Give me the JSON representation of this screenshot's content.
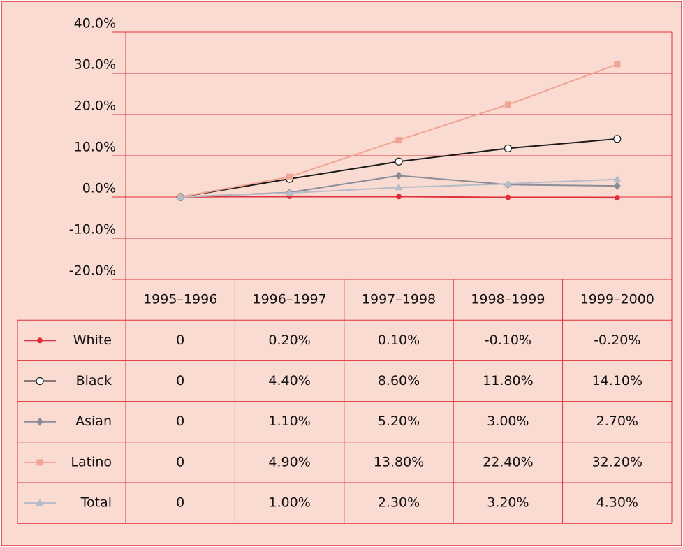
{
  "chart_data": {
    "type": "line",
    "categories": [
      "1995–1996",
      "1996–1997",
      "1997–1998",
      "1998–1999",
      "1999–2000"
    ],
    "series": [
      {
        "name": "White",
        "color": "#e0303c",
        "marker": "circle",
        "values": [
          0,
          0.2,
          0.1,
          -0.1,
          -0.2
        ],
        "value_labels": [
          "0",
          "0.20%",
          "0.10%",
          "-0.10%",
          "-0.20%"
        ]
      },
      {
        "name": "Black",
        "color": "#1a1a1a",
        "marker": "open-circle",
        "values": [
          0,
          4.4,
          8.6,
          11.8,
          14.1
        ],
        "value_labels": [
          "0",
          "4.40%",
          "8.60%",
          "11.80%",
          "14.10%"
        ]
      },
      {
        "name": "Asian",
        "color": "#8a8d95",
        "marker": "diamond",
        "values": [
          0,
          1.1,
          5.2,
          3.0,
          2.7
        ],
        "value_labels": [
          "0",
          "1.10%",
          "5.20%",
          "3.00%",
          "2.70%"
        ]
      },
      {
        "name": "Latino",
        "color": "#f0a494",
        "marker": "square",
        "values": [
          0,
          4.9,
          13.8,
          22.4,
          32.2
        ],
        "value_labels": [
          "0",
          "4.90%",
          "13.80%",
          "22.40%",
          "32.20%"
        ]
      },
      {
        "name": "Total",
        "color": "#b4bcc8",
        "marker": "triangle",
        "values": [
          0,
          1.0,
          2.3,
          3.2,
          4.3
        ],
        "value_labels": [
          "0",
          "1.00%",
          "2.30%",
          "3.20%",
          "4.30%"
        ]
      }
    ],
    "ylim": [
      -20,
      40
    ],
    "yticks": [
      {
        "value": -20,
        "label": "-20.0%"
      },
      {
        "value": -10,
        "label": "-10.0%"
      },
      {
        "value": 0,
        "label": "0.0%"
      },
      {
        "value": 10,
        "label": "10.0%"
      },
      {
        "value": 20,
        "label": "20.0%"
      },
      {
        "value": 30,
        "label": "30.0%"
      },
      {
        "value": 40,
        "label": "40.0%"
      }
    ],
    "grid": true
  }
}
